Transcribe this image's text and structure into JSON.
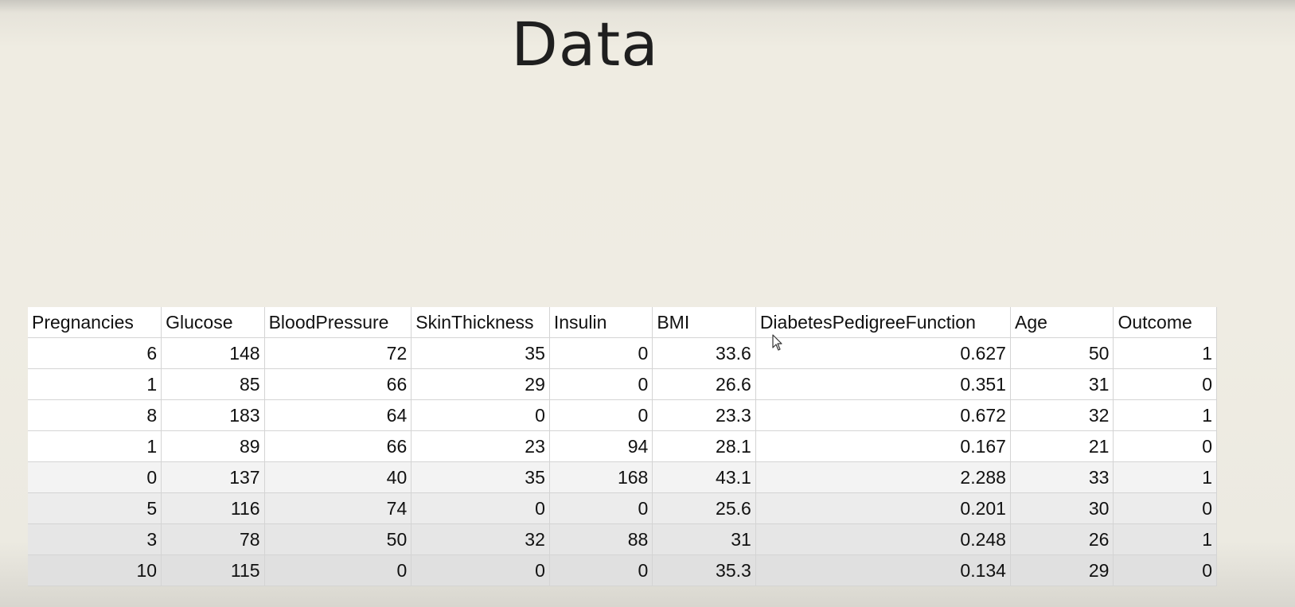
{
  "slide": {
    "title": "Data"
  },
  "table": {
    "columns": [
      "Pregnancies",
      "Glucose",
      "BloodPressure",
      "SkinThickness",
      "Insulin",
      "BMI",
      "DiabetesPedigreeFunction",
      "Age",
      "Outcome"
    ],
    "rows": [
      [
        "6",
        "148",
        "72",
        "35",
        "0",
        "33.6",
        "0.627",
        "50",
        "1"
      ],
      [
        "1",
        "85",
        "66",
        "29",
        "0",
        "26.6",
        "0.351",
        "31",
        "0"
      ],
      [
        "8",
        "183",
        "64",
        "0",
        "0",
        "23.3",
        "0.672",
        "32",
        "1"
      ],
      [
        "1",
        "89",
        "66",
        "23",
        "94",
        "28.1",
        "0.167",
        "21",
        "0"
      ],
      [
        "0",
        "137",
        "40",
        "35",
        "168",
        "43.1",
        "2.288",
        "33",
        "1"
      ],
      [
        "5",
        "116",
        "74",
        "0",
        "0",
        "25.6",
        "0.201",
        "30",
        "0"
      ],
      [
        "3",
        "78",
        "50",
        "32",
        "88",
        "31",
        "0.248",
        "26",
        "1"
      ],
      [
        "10",
        "115",
        "0",
        "0",
        "0",
        "35.3",
        "0.134",
        "29",
        "0"
      ]
    ]
  },
  "icons": {
    "cursor": "mouse-pointer-icon"
  }
}
